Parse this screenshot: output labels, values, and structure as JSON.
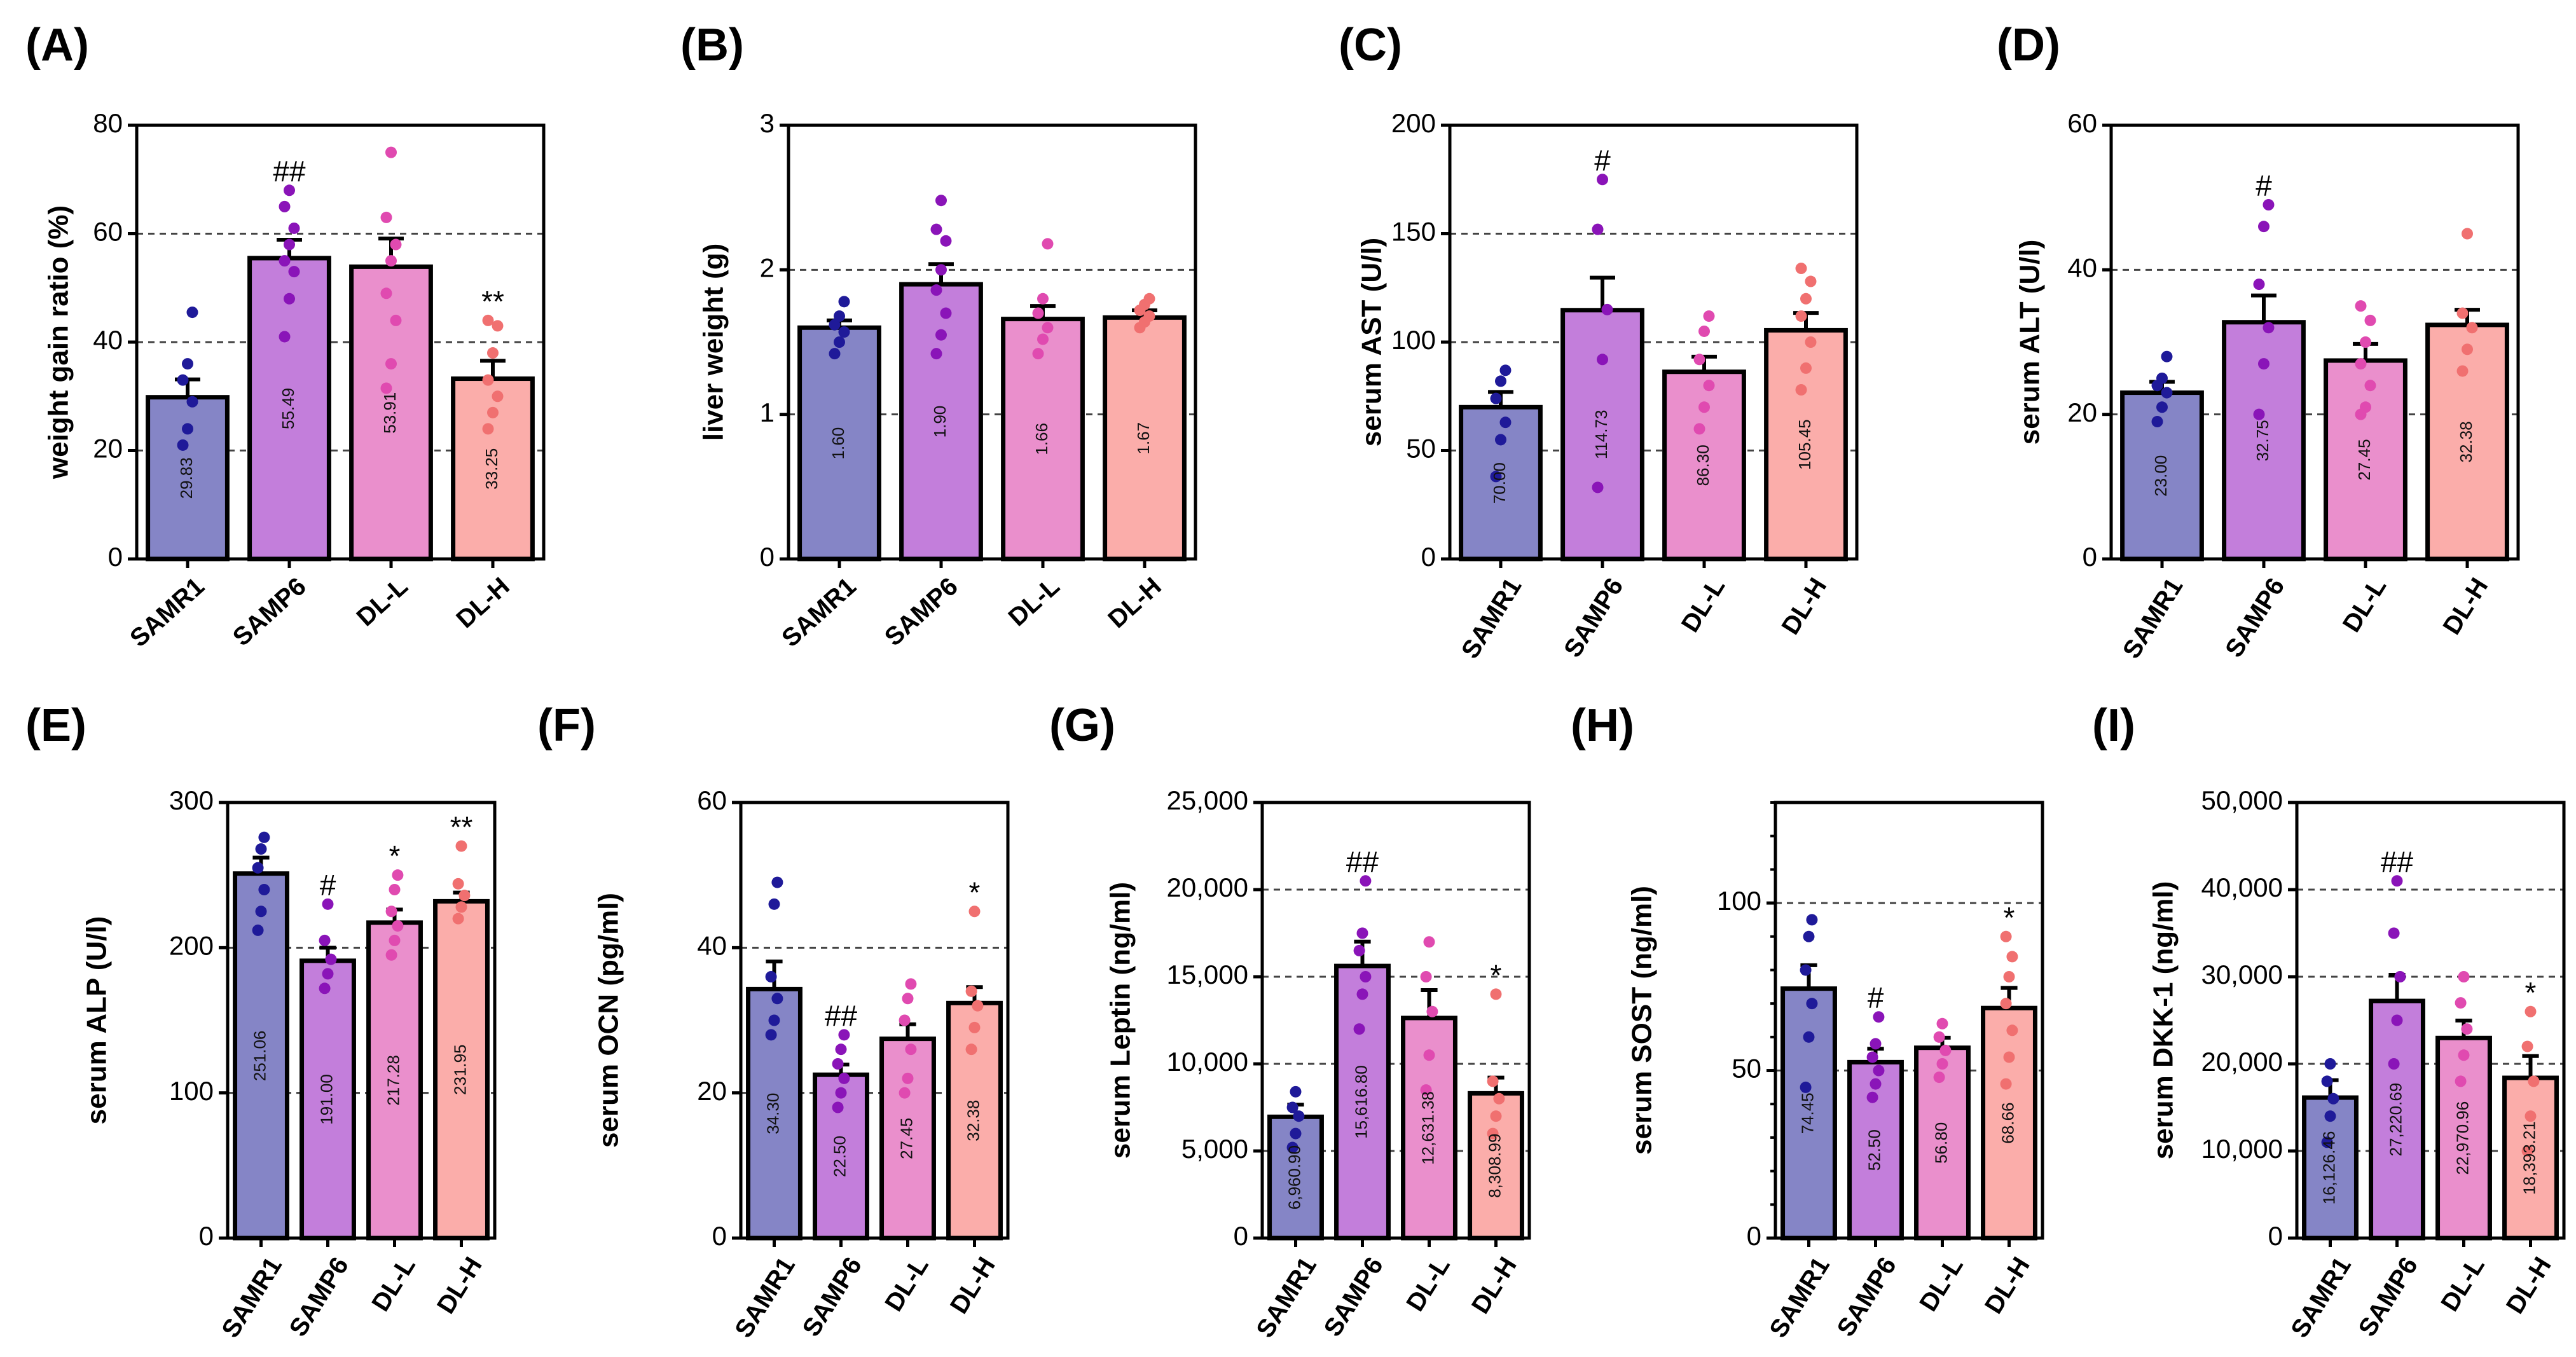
{
  "chart_data": [
    {
      "panel": "(A)",
      "type": "bar",
      "ylabel": "weight gain ratio (%)",
      "categories": [
        "SAMR1",
        "SAMP6",
        "DL-L",
        "DL-H"
      ],
      "values": [
        29.83,
        55.49,
        53.91,
        33.25
      ],
      "value_labels": [
        "29.83",
        "55.49",
        "53.91",
        "33.25"
      ],
      "errors": [
        3.3,
        3.4,
        5.2,
        3.3
      ],
      "significance": [
        "",
        "##",
        "",
        "**"
      ],
      "points": [
        [
          21,
          24,
          29,
          33,
          36,
          45.5
        ],
        [
          41,
          48,
          53,
          55,
          58,
          61,
          65,
          68
        ],
        [
          31.5,
          36,
          44,
          49,
          55,
          58,
          63,
          75
        ],
        [
          24,
          27,
          30,
          33,
          38,
          43,
          44
        ]
      ],
      "ylim": [
        0,
        80
      ],
      "yticks": [
        0,
        20,
        40,
        60,
        80
      ],
      "ytick_labels": [
        "0",
        "20",
        "40",
        "60",
        "80"
      ],
      "gridlines": [
        20,
        40,
        60
      ],
      "minor_ticks": false,
      "rotate_categories": false
    },
    {
      "panel": "(B)",
      "type": "bar",
      "ylabel": "liver weight (g)",
      "categories": [
        "SAMR1",
        "SAMP6",
        "DL-L",
        "DL-H"
      ],
      "values": [
        1.6,
        1.9,
        1.66,
        1.67
      ],
      "value_labels": [
        "1.60",
        "1.90",
        "1.66",
        "1.67"
      ],
      "errors": [
        0.05,
        0.14,
        0.09,
        0.05
      ],
      "significance": [
        "",
        "",
        "",
        ""
      ],
      "points": [
        [
          1.42,
          1.5,
          1.57,
          1.62,
          1.68,
          1.78
        ],
        [
          1.42,
          1.55,
          1.7,
          1.86,
          2.0,
          2.2,
          2.28,
          2.48
        ],
        [
          1.42,
          1.52,
          1.6,
          1.7,
          1.8,
          2.18
        ],
        [
          1.6,
          1.64,
          1.68,
          1.72,
          1.76,
          1.8
        ]
      ],
      "ylim": [
        0,
        3
      ],
      "yticks": [
        0,
        1,
        2,
        3
      ],
      "ytick_labels": [
        "0",
        "1",
        "2",
        "3"
      ],
      "gridlines": [
        1,
        2
      ],
      "minor_ticks": false,
      "rotate_categories": false
    },
    {
      "panel": "(C)",
      "type": "bar",
      "ylabel": "serum  AST (U/l)",
      "categories": [
        "SAMR1",
        "SAMP6",
        "DL-L",
        "DL-H"
      ],
      "values": [
        70.0,
        114.73,
        86.3,
        105.45
      ],
      "value_labels": [
        "70.00",
        "114.73",
        "86.30",
        "105.45"
      ],
      "errors": [
        7,
        15,
        7,
        8
      ],
      "significance": [
        "",
        "#",
        "",
        ""
      ],
      "points": [
        [
          38,
          55,
          63,
          74,
          82,
          87
        ],
        [
          33,
          92,
          115,
          152,
          175
        ],
        [
          60,
          70,
          80,
          92,
          105,
          112
        ],
        [
          78,
          88,
          100,
          112,
          120,
          128,
          134
        ]
      ],
      "ylim": [
        0,
        200
      ],
      "yticks": [
        0,
        50,
        100,
        150,
        200
      ],
      "ytick_labels": [
        "0",
        "50",
        "100",
        "150",
        "200"
      ],
      "gridlines": [
        50,
        100,
        150
      ],
      "minor_ticks": false,
      "rotate_categories": true
    },
    {
      "panel": "(D)",
      "type": "bar",
      "ylabel": "serum  ALT (U/l)",
      "categories": [
        "SAMR1",
        "SAMP6",
        "DL-L",
        "DL-H"
      ],
      "values": [
        23.0,
        32.75,
        27.45,
        32.38
      ],
      "value_labels": [
        "23.00",
        "32.75",
        "27.45",
        "32.38"
      ],
      "errors": [
        1.5,
        3.7,
        2.3,
        2.1
      ],
      "significance": [
        "",
        "#",
        "",
        ""
      ],
      "points": [
        [
          19,
          21,
          23,
          24,
          25,
          28
        ],
        [
          20,
          27,
          32,
          38,
          46,
          49
        ],
        [
          20,
          21,
          24,
          27,
          30,
          33,
          35
        ],
        [
          26,
          29,
          32,
          34,
          45
        ]
      ],
      "ylim": [
        0,
        60
      ],
      "yticks": [
        0,
        20,
        40,
        60
      ],
      "ytick_labels": [
        "0",
        "20",
        "40",
        "60"
      ],
      "gridlines": [
        20,
        40
      ],
      "minor_ticks": false,
      "rotate_categories": true
    },
    {
      "panel": "(E)",
      "type": "bar",
      "ylabel": "serum  ALP (U/l)",
      "categories": [
        "SAMR1",
        "SAMP6",
        "DL-L",
        "DL-H"
      ],
      "values": [
        251.06,
        191.0,
        217.28,
        231.95
      ],
      "value_labels": [
        "251.06",
        "191.00",
        "217.28",
        "231.95"
      ],
      "errors": [
        11,
        9,
        9,
        6
      ],
      "significance": [
        "",
        "#",
        "*",
        "**"
      ],
      "points": [
        [
          212,
          225,
          240,
          255,
          268,
          276
        ],
        [
          172,
          182,
          192,
          205,
          230
        ],
        [
          195,
          205,
          215,
          225,
          240,
          250
        ],
        [
          220,
          228,
          236,
          244,
          270
        ]
      ],
      "ylim": [
        0,
        300
      ],
      "yticks": [
        0,
        100,
        200,
        300
      ],
      "ytick_labels": [
        "0",
        "100",
        "200",
        "300"
      ],
      "gridlines": [
        100,
        200
      ],
      "minor_ticks": false,
      "rotate_categories": true
    },
    {
      "panel": "(F)",
      "type": "bar",
      "ylabel": "serum  OCN (pg/ml)",
      "categories": [
        "SAMR1",
        "SAMP6",
        "DL-L",
        "DL-H"
      ],
      "values": [
        34.3,
        22.5,
        27.45,
        32.38
      ],
      "value_labels": [
        "34.30",
        "22.50",
        "27.45",
        "32.38"
      ],
      "errors": [
        3.8,
        1.4,
        2.0,
        2.2
      ],
      "significance": [
        "",
        "##",
        "",
        "*"
      ],
      "points": [
        [
          28,
          30,
          33,
          36,
          46,
          49
        ],
        [
          18,
          20,
          22,
          24,
          26,
          28
        ],
        [
          20,
          22,
          26,
          30,
          33,
          35
        ],
        [
          26,
          29,
          32,
          34,
          45
        ]
      ],
      "ylim": [
        0,
        60
      ],
      "yticks": [
        0,
        20,
        40,
        60
      ],
      "ytick_labels": [
        "0",
        "20",
        "40",
        "60"
      ],
      "gridlines": [
        20,
        40
      ],
      "minor_ticks": false,
      "rotate_categories": true
    },
    {
      "panel": "(G)",
      "type": "bar",
      "ylabel": "serum  Leptin  (ng/ml)",
      "categories": [
        "SAMR1",
        "SAMP6",
        "DL-L",
        "DL-H"
      ],
      "values": [
        6960.9,
        15616.8,
        12631.38,
        8308.99
      ],
      "value_labels": [
        "6,960.90",
        "15,616.80",
        "12,631.38",
        "8,308.99"
      ],
      "errors": [
        700,
        1400,
        1600,
        900
      ],
      "significance": [
        "",
        "##",
        "",
        "*"
      ],
      "points": [
        [
          5200,
          6000,
          7000,
          7500,
          8400
        ],
        [
          12000,
          14000,
          15000,
          16500,
          17500,
          20500
        ],
        [
          8500,
          10500,
          13000,
          15000,
          17000
        ],
        [
          6000,
          7000,
          8000,
          9000,
          14000
        ]
      ],
      "ylim": [
        0,
        25000
      ],
      "yticks": [
        0,
        5000,
        10000,
        15000,
        20000,
        25000
      ],
      "ytick_labels": [
        "0",
        "5,000",
        "10,000",
        "15,000",
        "20,000",
        "25,000"
      ],
      "gridlines": [
        5000,
        10000,
        15000,
        20000
      ],
      "minor_ticks": false,
      "rotate_categories": true
    },
    {
      "panel": "(H)",
      "type": "bar",
      "ylabel": "serum  SOST  (ng/ml)",
      "categories": [
        "SAMR1",
        "SAMP6",
        "DL-L",
        "DL-H"
      ],
      "values": [
        74.45,
        52.5,
        56.8,
        68.66
      ],
      "value_labels": [
        "74.45",
        "52.50",
        "56.80",
        "68.66"
      ],
      "errors": [
        7,
        4,
        3,
        6
      ],
      "significance": [
        "",
        "#",
        "",
        "*"
      ],
      "points": [
        [
          45,
          60,
          70,
          80,
          90,
          95
        ],
        [
          42,
          46,
          50,
          54,
          58,
          66
        ],
        [
          48,
          52,
          56,
          60,
          64
        ],
        [
          46,
          54,
          62,
          70,
          78,
          84,
          90
        ]
      ],
      "ylim": [
        0,
        130
      ],
      "yticks": [
        0,
        50,
        100
      ],
      "ytick_labels": [
        "0",
        "50",
        "100"
      ],
      "gridlines": [
        50,
        100
      ],
      "minor_ticks": true,
      "rotate_categories": true
    },
    {
      "panel": "(I)",
      "type": "bar",
      "ylabel": "serum  DKK-1  (ng/ml)",
      "categories": [
        "SAMR1",
        "SAMP6",
        "DL-L",
        "DL-H"
      ],
      "values": [
        16126.46,
        27220.69,
        22970.96,
        18393.21
      ],
      "value_labels": [
        "16,126.46",
        "27,220.69",
        "22,970.96",
        "18,393.21"
      ],
      "errors": [
        2000,
        3000,
        2000,
        2500
      ],
      "significance": [
        "",
        "##",
        "",
        "*"
      ],
      "points": [
        [
          11000,
          14000,
          16000,
          18000,
          20000
        ],
        [
          20000,
          25000,
          30000,
          35000,
          41000
        ],
        [
          18000,
          21000,
          24000,
          27000,
          30000
        ],
        [
          10000,
          14000,
          18000,
          22000,
          26000
        ]
      ],
      "ylim": [
        0,
        50000
      ],
      "yticks": [
        0,
        10000,
        20000,
        30000,
        40000,
        50000
      ],
      "ytick_labels": [
        "0",
        "10,000",
        "20,000",
        "30,000",
        "40,000",
        "50,000"
      ],
      "gridlines": [
        10000,
        20000,
        30000,
        40000
      ],
      "minor_ticks": false,
      "rotate_categories": true
    }
  ],
  "bar_colors": [
    "#8585c6",
    "#c37edb",
    "#ea8fcc",
    "#fbadaa"
  ],
  "point_colors": [
    "#1f1a99",
    "#8a14b8",
    "#e04ab0",
    "#f07070"
  ]
}
